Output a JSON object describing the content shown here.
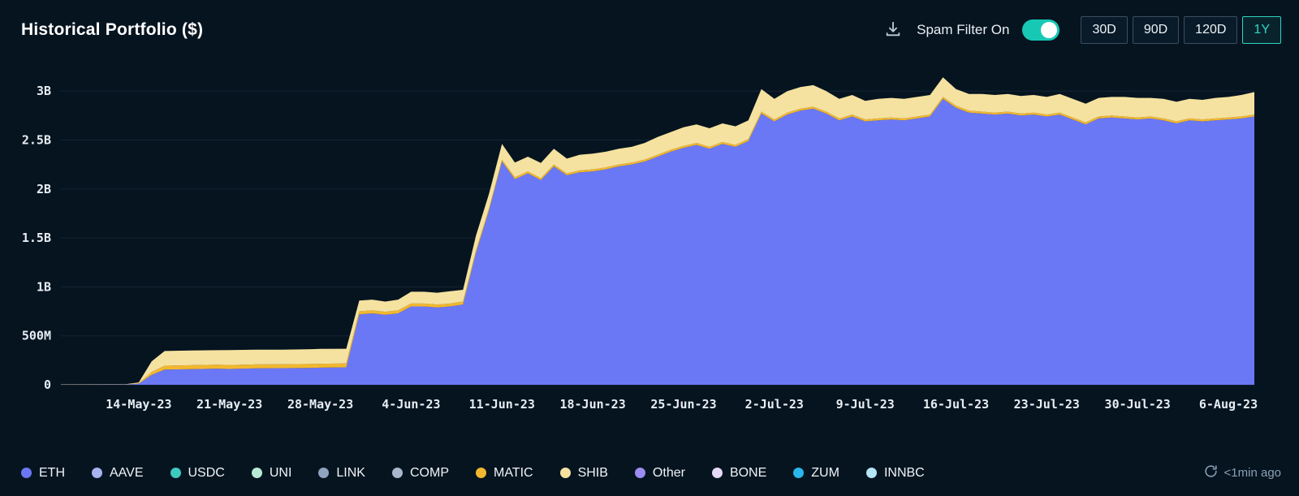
{
  "header": {
    "title": "Historical Portfolio ($)",
    "spam_filter_label": "Spam Filter On",
    "spam_filter_on": true,
    "range_buttons": [
      {
        "label": "30D",
        "active": false
      },
      {
        "label": "90D",
        "active": false
      },
      {
        "label": "120D",
        "active": false
      },
      {
        "label": "1Y",
        "active": true
      }
    ]
  },
  "colors": {
    "background": "#061420",
    "accent_teal": "#2fd5c2",
    "grid": "#1d3145",
    "axis_text": "#e6edf3"
  },
  "legend": {
    "items": [
      {
        "label": "ETH",
        "color": "#6b78f5"
      },
      {
        "label": "AAVE",
        "color": "#a8b4f0"
      },
      {
        "label": "USDC",
        "color": "#3ec9c0"
      },
      {
        "label": "UNI",
        "color": "#b9ead5"
      },
      {
        "label": "LINK",
        "color": "#8fa3c0"
      },
      {
        "label": "COMP",
        "color": "#aab6cc"
      },
      {
        "label": "MATIC",
        "color": "#f2b72e"
      },
      {
        "label": "SHIB",
        "color": "#f5e2a0"
      },
      {
        "label": "Other",
        "color": "#9b8df2"
      },
      {
        "label": "BONE",
        "color": "#e6d9f7"
      },
      {
        "label": "ZUM",
        "color": "#29b6ea"
      },
      {
        "label": "INNBC",
        "color": "#b3e5f7"
      }
    ],
    "updated": "<1min ago"
  },
  "chart_data": {
    "type": "area",
    "stacked": true,
    "title": "Historical Portfolio ($)",
    "unit": "USD billions",
    "ylim": [
      0,
      3.25
    ],
    "x_domain": [
      0,
      92
    ],
    "grid": true,
    "legend_position": "bottom",
    "y_ticks": [
      {
        "value": 0,
        "label": "0"
      },
      {
        "value": 0.5,
        "label": "500M"
      },
      {
        "value": 1,
        "label": "1B"
      },
      {
        "value": 1.5,
        "label": "1.5B"
      },
      {
        "value": 2,
        "label": "2B"
      },
      {
        "value": 2.5,
        "label": "2.5B"
      },
      {
        "value": 3,
        "label": "3B"
      }
    ],
    "x_ticks": [
      {
        "d": 6,
        "label": "14-May-23"
      },
      {
        "d": 13,
        "label": "21-May-23"
      },
      {
        "d": 20,
        "label": "28-May-23"
      },
      {
        "d": 27,
        "label": "4-Jun-23"
      },
      {
        "d": 34,
        "label": "11-Jun-23"
      },
      {
        "d": 41,
        "label": "18-Jun-23"
      },
      {
        "d": 48,
        "label": "25-Jun-23"
      },
      {
        "d": 55,
        "label": "2-Jul-23"
      },
      {
        "d": 62,
        "label": "9-Jul-23"
      },
      {
        "d": 69,
        "label": "16-Jul-23"
      },
      {
        "d": 76,
        "label": "23-Jul-23"
      },
      {
        "d": 83,
        "label": "30-Jul-23"
      },
      {
        "d": 90,
        "label": "6-Aug-23"
      }
    ],
    "series": [
      {
        "name": "ETH",
        "color": "#6b78f5"
      },
      {
        "name": "MATIC",
        "color": "#f2b72e"
      },
      {
        "name": "SHIB",
        "color": "#f5e2a0"
      }
    ],
    "points_format": [
      "day_offset_from_8-May-23",
      "ETH",
      "MATIC",
      "SHIB"
    ],
    "points": [
      [
        0,
        0.002,
        0.001,
        0.002
      ],
      [
        5,
        0.003,
        0.001,
        0.003
      ],
      [
        6,
        0.01,
        0.004,
        0.01
      ],
      [
        7,
        0.1,
        0.03,
        0.11
      ],
      [
        8,
        0.155,
        0.04,
        0.15
      ],
      [
        10,
        0.16,
        0.04,
        0.15
      ],
      [
        12,
        0.165,
        0.04,
        0.148
      ],
      [
        13,
        0.162,
        0.04,
        0.152
      ],
      [
        15,
        0.168,
        0.04,
        0.15
      ],
      [
        17,
        0.17,
        0.04,
        0.148
      ],
      [
        19,
        0.172,
        0.04,
        0.15
      ],
      [
        20,
        0.175,
        0.04,
        0.152
      ],
      [
        22,
        0.178,
        0.04,
        0.15
      ],
      [
        23,
        0.72,
        0.03,
        0.11
      ],
      [
        24,
        0.73,
        0.03,
        0.11
      ],
      [
        25,
        0.715,
        0.03,
        0.105
      ],
      [
        26,
        0.73,
        0.03,
        0.11
      ],
      [
        27,
        0.8,
        0.03,
        0.12
      ],
      [
        28,
        0.8,
        0.03,
        0.12
      ],
      [
        29,
        0.79,
        0.03,
        0.12
      ],
      [
        30,
        0.8,
        0.03,
        0.125
      ],
      [
        31,
        0.82,
        0.03,
        0.12
      ],
      [
        32,
        1.35,
        0.025,
        0.15
      ],
      [
        33,
        1.78,
        0.02,
        0.15
      ],
      [
        34,
        2.28,
        0.02,
        0.16
      ],
      [
        35,
        2.1,
        0.02,
        0.15
      ],
      [
        36,
        2.16,
        0.02,
        0.15
      ],
      [
        37,
        2.09,
        0.02,
        0.155
      ],
      [
        38,
        2.23,
        0.02,
        0.16
      ],
      [
        39,
        2.14,
        0.02,
        0.15
      ],
      [
        40,
        2.17,
        0.02,
        0.16
      ],
      [
        41,
        2.18,
        0.02,
        0.16
      ],
      [
        42,
        2.2,
        0.02,
        0.16
      ],
      [
        43,
        2.23,
        0.02,
        0.16
      ],
      [
        44,
        2.25,
        0.02,
        0.16
      ],
      [
        45,
        2.28,
        0.02,
        0.17
      ],
      [
        46,
        2.33,
        0.02,
        0.18
      ],
      [
        47,
        2.38,
        0.02,
        0.18
      ],
      [
        48,
        2.42,
        0.02,
        0.19
      ],
      [
        49,
        2.45,
        0.02,
        0.19
      ],
      [
        50,
        2.41,
        0.02,
        0.19
      ],
      [
        51,
        2.46,
        0.02,
        0.19
      ],
      [
        52,
        2.43,
        0.02,
        0.19
      ],
      [
        53,
        2.49,
        0.02,
        0.19
      ],
      [
        54,
        2.77,
        0.02,
        0.23
      ],
      [
        55,
        2.69,
        0.02,
        0.21
      ],
      [
        56,
        2.76,
        0.02,
        0.22
      ],
      [
        57,
        2.8,
        0.02,
        0.22
      ],
      [
        58,
        2.82,
        0.02,
        0.22
      ],
      [
        59,
        2.77,
        0.02,
        0.21
      ],
      [
        60,
        2.7,
        0.02,
        0.2
      ],
      [
        61,
        2.74,
        0.02,
        0.2
      ],
      [
        62,
        2.69,
        0.02,
        0.19
      ],
      [
        63,
        2.7,
        0.02,
        0.2
      ],
      [
        64,
        2.71,
        0.02,
        0.2
      ],
      [
        65,
        2.7,
        0.02,
        0.2
      ],
      [
        66,
        2.72,
        0.02,
        0.2
      ],
      [
        67,
        2.74,
        0.02,
        0.2
      ],
      [
        68,
        2.92,
        0.02,
        0.2
      ],
      [
        69,
        2.83,
        0.02,
        0.17
      ],
      [
        70,
        2.78,
        0.02,
        0.17
      ],
      [
        71,
        2.77,
        0.02,
        0.18
      ],
      [
        72,
        2.76,
        0.02,
        0.18
      ],
      [
        73,
        2.77,
        0.02,
        0.18
      ],
      [
        74,
        2.75,
        0.02,
        0.18
      ],
      [
        75,
        2.76,
        0.02,
        0.18
      ],
      [
        76,
        2.74,
        0.02,
        0.18
      ],
      [
        77,
        2.76,
        0.02,
        0.19
      ],
      [
        78,
        2.71,
        0.02,
        0.19
      ],
      [
        79,
        2.66,
        0.02,
        0.19
      ],
      [
        80,
        2.72,
        0.02,
        0.19
      ],
      [
        81,
        2.73,
        0.02,
        0.19
      ],
      [
        82,
        2.72,
        0.02,
        0.2
      ],
      [
        83,
        2.71,
        0.02,
        0.2
      ],
      [
        84,
        2.72,
        0.02,
        0.19
      ],
      [
        85,
        2.7,
        0.02,
        0.2
      ],
      [
        86,
        2.67,
        0.02,
        0.2
      ],
      [
        87,
        2.7,
        0.02,
        0.2
      ],
      [
        88,
        2.69,
        0.02,
        0.2
      ],
      [
        89,
        2.7,
        0.02,
        0.21
      ],
      [
        90,
        2.71,
        0.02,
        0.21
      ],
      [
        91,
        2.72,
        0.02,
        0.22
      ],
      [
        92,
        2.74,
        0.02,
        0.23
      ]
    ]
  }
}
